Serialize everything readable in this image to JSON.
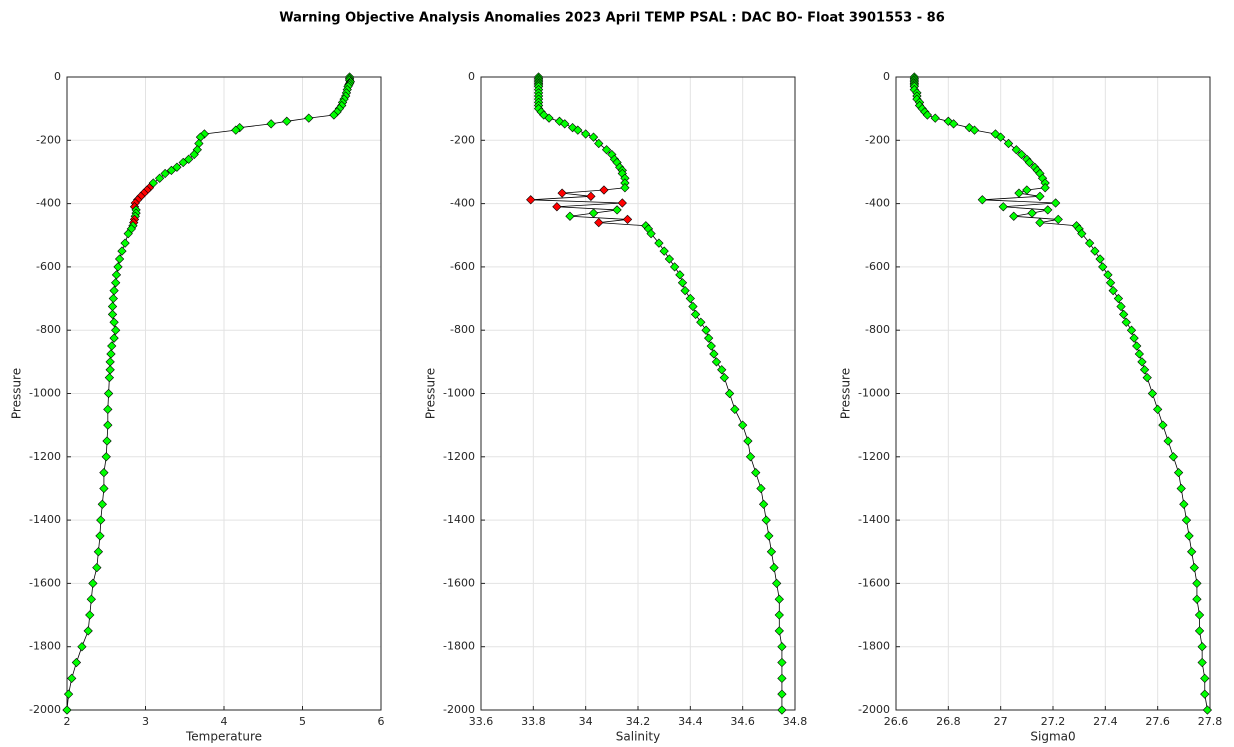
{
  "title": "Warning Objective Analysis Anomalies 2023 April TEMP PSAL :  DAC BO- Float 3901553 - 86",
  "chart_data": [
    {
      "type": "line",
      "xlabel": "Temperature",
      "ylabel": "Pressure",
      "xlim": [
        2,
        6
      ],
      "xticks": [
        2,
        3,
        4,
        5,
        6
      ],
      "ylim": [
        -2000,
        0
      ],
      "yticks": [
        -2000,
        -1800,
        -1600,
        -1400,
        -1200,
        -1000,
        -800,
        -600,
        -400,
        -200,
        0
      ],
      "grid": true,
      "line_color": "#000000",
      "x": [
        5.6,
        5.6,
        5.6,
        5.61,
        5.6,
        5.59,
        5.58,
        5.57,
        5.56,
        5.55,
        5.53,
        5.51,
        5.5,
        5.47,
        5.44,
        5.4,
        5.08,
        4.8,
        4.6,
        4.2,
        4.15,
        3.75,
        3.7,
        3.68,
        3.66,
        3.62,
        3.55,
        3.48,
        3.4,
        3.33,
        3.25,
        3.18,
        3.1,
        3.05,
        3.02,
        2.98,
        2.94,
        2.9,
        2.87,
        2.86,
        2.88,
        2.88,
        2.87,
        2.86,
        2.85,
        2.84,
        2.82,
        2.78,
        2.74,
        2.7,
        2.67,
        2.65,
        2.63,
        2.62,
        2.6,
        2.59,
        2.58,
        2.58,
        2.6,
        2.62,
        2.6,
        2.57,
        2.56,
        2.55,
        2.55,
        2.54,
        2.53,
        2.52,
        2.52,
        2.51,
        2.5,
        2.47,
        2.47,
        2.45,
        2.43,
        2.42,
        2.4,
        2.38,
        2.33,
        2.31,
        2.29,
        2.27,
        2.19,
        2.12,
        2.06,
        2.02,
        2.0
      ],
      "y": [
        0,
        -5,
        -10,
        -15,
        -20,
        -25,
        -30,
        -40,
        -50,
        -60,
        -70,
        -80,
        -90,
        -100,
        -110,
        -120,
        -130,
        -140,
        -148,
        -160,
        -168,
        -180,
        -190,
        -210,
        -230,
        -245,
        -260,
        -270,
        -285,
        -295,
        -305,
        -320,
        -335,
        -350,
        -357,
        -367,
        -377,
        -388,
        -398,
        -410,
        -420,
        -430,
        -440,
        -450,
        -460,
        -470,
        -480,
        -495,
        -525,
        -550,
        -575,
        -600,
        -625,
        -650,
        -675,
        -700,
        -725,
        -750,
        -775,
        -800,
        -825,
        -850,
        -875,
        -900,
        -925,
        -950,
        -1000,
        -1050,
        -1100,
        -1150,
        -1200,
        -1250,
        -1300,
        -1350,
        -1400,
        -1450,
        -1500,
        -1550,
        -1600,
        -1650,
        -1700,
        -1750,
        -1800,
        -1850,
        -1900,
        -1950,
        -2000
      ],
      "colors": [
        "lime",
        "lime",
        "lime",
        "lime",
        "lime",
        "lime",
        "lime",
        "lime",
        "lime",
        "lime",
        "lime",
        "lime",
        "lime",
        "lime",
        "lime",
        "lime",
        "lime",
        "lime",
        "lime",
        "lime",
        "lime",
        "lime",
        "lime",
        "lime",
        "lime",
        "lime",
        "lime",
        "lime",
        "lime",
        "lime",
        "lime",
        "lime",
        "lime",
        "red",
        "red",
        "red",
        "red",
        "red",
        "red",
        "red",
        "lime",
        "lime",
        "lime",
        "red",
        "red",
        "lime",
        "lime",
        "lime",
        "lime",
        "lime",
        "lime",
        "lime",
        "lime",
        "lime",
        "lime",
        "lime",
        "lime",
        "lime",
        "lime",
        "lime",
        "lime",
        "lime",
        "lime",
        "lime",
        "lime",
        "lime",
        "lime",
        "lime",
        "lime",
        "lime",
        "lime",
        "lime",
        "lime",
        "lime",
        "lime",
        "lime",
        "lime",
        "lime",
        "lime",
        "lime",
        "lime",
        "lime",
        "lime",
        "lime",
        "lime",
        "lime",
        "lime"
      ]
    },
    {
      "type": "line",
      "xlabel": "Salinity",
      "ylabel": "Pressure",
      "xlim": [
        33.6,
        34.8
      ],
      "xticks": [
        33.6,
        33.8,
        34,
        34.2,
        34.4,
        34.6,
        34.8
      ],
      "ylim": [
        -2000,
        0
      ],
      "yticks": [
        -2000,
        -1800,
        -1600,
        -1400,
        -1200,
        -1000,
        -800,
        -600,
        -400,
        -200,
        0
      ],
      "grid": true,
      "line_color": "#000000",
      "x": [
        33.82,
        33.82,
        33.82,
        33.82,
        33.82,
        33.82,
        33.82,
        33.82,
        33.82,
        33.82,
        33.82,
        33.82,
        33.82,
        33.82,
        33.83,
        33.84,
        33.86,
        33.9,
        33.92,
        33.95,
        33.97,
        34.0,
        34.03,
        34.05,
        34.08,
        34.1,
        34.11,
        34.12,
        34.13,
        34.14,
        34.14,
        34.15,
        34.15,
        34.15,
        34.07,
        33.91,
        34.02,
        33.79,
        34.14,
        33.89,
        34.12,
        34.03,
        33.94,
        34.16,
        34.05,
        34.23,
        34.24,
        34.25,
        34.28,
        34.3,
        34.32,
        34.34,
        34.36,
        34.37,
        34.38,
        34.4,
        34.41,
        34.42,
        34.44,
        34.46,
        34.47,
        34.48,
        34.49,
        34.5,
        34.52,
        34.53,
        34.55,
        34.57,
        34.6,
        34.62,
        34.63,
        34.65,
        34.67,
        34.68,
        34.69,
        34.7,
        34.71,
        34.72,
        34.73,
        34.74,
        34.74,
        34.74,
        34.75,
        34.75,
        34.75,
        34.75,
        34.75
      ],
      "y": [
        0,
        -5,
        -10,
        -15,
        -20,
        -25,
        -30,
        -40,
        -50,
        -60,
        -70,
        -80,
        -90,
        -100,
        -110,
        -120,
        -130,
        -140,
        -148,
        -160,
        -168,
        -180,
        -190,
        -210,
        -230,
        -245,
        -260,
        -270,
        -285,
        -295,
        -305,
        -320,
        -335,
        -350,
        -357,
        -367,
        -377,
        -388,
        -398,
        -410,
        -420,
        -430,
        -440,
        -450,
        -460,
        -470,
        -480,
        -495,
        -525,
        -550,
        -575,
        -600,
        -625,
        -650,
        -675,
        -700,
        -725,
        -750,
        -775,
        -800,
        -825,
        -850,
        -875,
        -900,
        -925,
        -950,
        -1000,
        -1050,
        -1100,
        -1150,
        -1200,
        -1250,
        -1300,
        -1350,
        -1400,
        -1450,
        -1500,
        -1550,
        -1600,
        -1650,
        -1700,
        -1750,
        -1800,
        -1850,
        -1900,
        -1950,
        -2000
      ],
      "colors": [
        "lime",
        "lime",
        "lime",
        "lime",
        "lime",
        "lime",
        "lime",
        "lime",
        "lime",
        "lime",
        "lime",
        "lime",
        "lime",
        "lime",
        "lime",
        "lime",
        "lime",
        "lime",
        "lime",
        "lime",
        "lime",
        "lime",
        "lime",
        "lime",
        "lime",
        "lime",
        "lime",
        "lime",
        "lime",
        "lime",
        "lime",
        "lime",
        "lime",
        "lime",
        "red",
        "red",
        "red",
        "red",
        "red",
        "red",
        "lime",
        "lime",
        "lime",
        "red",
        "red",
        "lime",
        "lime",
        "lime",
        "lime",
        "lime",
        "lime",
        "lime",
        "lime",
        "lime",
        "lime",
        "lime",
        "lime",
        "lime",
        "lime",
        "lime",
        "lime",
        "lime",
        "lime",
        "lime",
        "lime",
        "lime",
        "lime",
        "lime",
        "lime",
        "lime",
        "lime",
        "lime",
        "lime",
        "lime",
        "lime",
        "lime",
        "lime",
        "lime",
        "lime",
        "lime",
        "lime",
        "lime",
        "lime",
        "lime",
        "lime",
        "lime",
        "lime"
      ]
    },
    {
      "type": "line",
      "xlabel": "Sigma0",
      "ylabel": "Pressure",
      "xlim": [
        26.6,
        27.8
      ],
      "xticks": [
        26.6,
        26.8,
        27,
        27.2,
        27.4,
        27.6,
        27.8
      ],
      "ylim": [
        -2000,
        0
      ],
      "yticks": [
        -2000,
        -1800,
        -1600,
        -1400,
        -1200,
        -1000,
        -800,
        -600,
        -400,
        -200,
        0
      ],
      "grid": true,
      "line_color": "#000000",
      "x": [
        26.67,
        26.67,
        26.67,
        26.67,
        26.67,
        26.67,
        26.67,
        26.67,
        26.68,
        26.68,
        26.68,
        26.69,
        26.69,
        26.7,
        26.71,
        26.72,
        26.75,
        26.8,
        26.82,
        26.88,
        26.9,
        26.98,
        27.0,
        27.03,
        27.06,
        27.08,
        27.1,
        27.11,
        27.13,
        27.14,
        27.15,
        27.16,
        27.17,
        27.17,
        27.1,
        27.07,
        27.15,
        26.93,
        27.21,
        27.01,
        27.18,
        27.12,
        27.05,
        27.22,
        27.15,
        27.29,
        27.3,
        27.31,
        27.34,
        27.36,
        27.38,
        27.39,
        27.41,
        27.42,
        27.43,
        27.45,
        27.46,
        27.47,
        27.48,
        27.5,
        27.51,
        27.52,
        27.53,
        27.54,
        27.55,
        27.56,
        27.58,
        27.6,
        27.62,
        27.64,
        27.66,
        27.68,
        27.69,
        27.7,
        27.71,
        27.72,
        27.73,
        27.74,
        27.75,
        27.75,
        27.76,
        27.76,
        27.77,
        27.77,
        27.78,
        27.78,
        27.79
      ],
      "y": [
        0,
        -5,
        -10,
        -15,
        -20,
        -25,
        -30,
        -40,
        -50,
        -60,
        -70,
        -80,
        -90,
        -100,
        -110,
        -120,
        -130,
        -140,
        -148,
        -160,
        -168,
        -180,
        -190,
        -210,
        -230,
        -245,
        -260,
        -270,
        -285,
        -295,
        -305,
        -320,
        -335,
        -350,
        -357,
        -367,
        -377,
        -388,
        -398,
        -410,
        -420,
        -430,
        -440,
        -450,
        -460,
        -470,
        -480,
        -495,
        -525,
        -550,
        -575,
        -600,
        -625,
        -650,
        -675,
        -700,
        -725,
        -750,
        -775,
        -800,
        -825,
        -850,
        -875,
        -900,
        -925,
        -950,
        -1000,
        -1050,
        -1100,
        -1150,
        -1200,
        -1250,
        -1300,
        -1350,
        -1400,
        -1450,
        -1500,
        -1550,
        -1600,
        -1650,
        -1700,
        -1750,
        -1800,
        -1850,
        -1900,
        -1950,
        -2000
      ],
      "colors": [
        "lime",
        "lime",
        "lime",
        "lime",
        "lime",
        "lime",
        "lime",
        "lime",
        "lime",
        "lime",
        "lime",
        "lime",
        "lime",
        "lime",
        "lime",
        "lime",
        "lime",
        "lime",
        "lime",
        "lime",
        "lime",
        "lime",
        "lime",
        "lime",
        "lime",
        "lime",
        "lime",
        "lime",
        "lime",
        "lime",
        "lime",
        "lime",
        "lime",
        "lime",
        "lime",
        "lime",
        "lime",
        "lime",
        "lime",
        "lime",
        "lime",
        "lime",
        "lime",
        "lime",
        "lime",
        "lime",
        "lime",
        "lime",
        "lime",
        "lime",
        "lime",
        "lime",
        "lime",
        "lime",
        "lime",
        "lime",
        "lime",
        "lime",
        "lime",
        "lime",
        "lime",
        "lime",
        "lime",
        "lime",
        "lime",
        "lime",
        "lime",
        "lime",
        "lime",
        "lime",
        "lime",
        "lime",
        "lime",
        "lime",
        "lime",
        "lime",
        "lime",
        "lime",
        "lime",
        "lime",
        "lime",
        "lime",
        "lime",
        "lime",
        "lime",
        "lime",
        "lime"
      ]
    }
  ]
}
